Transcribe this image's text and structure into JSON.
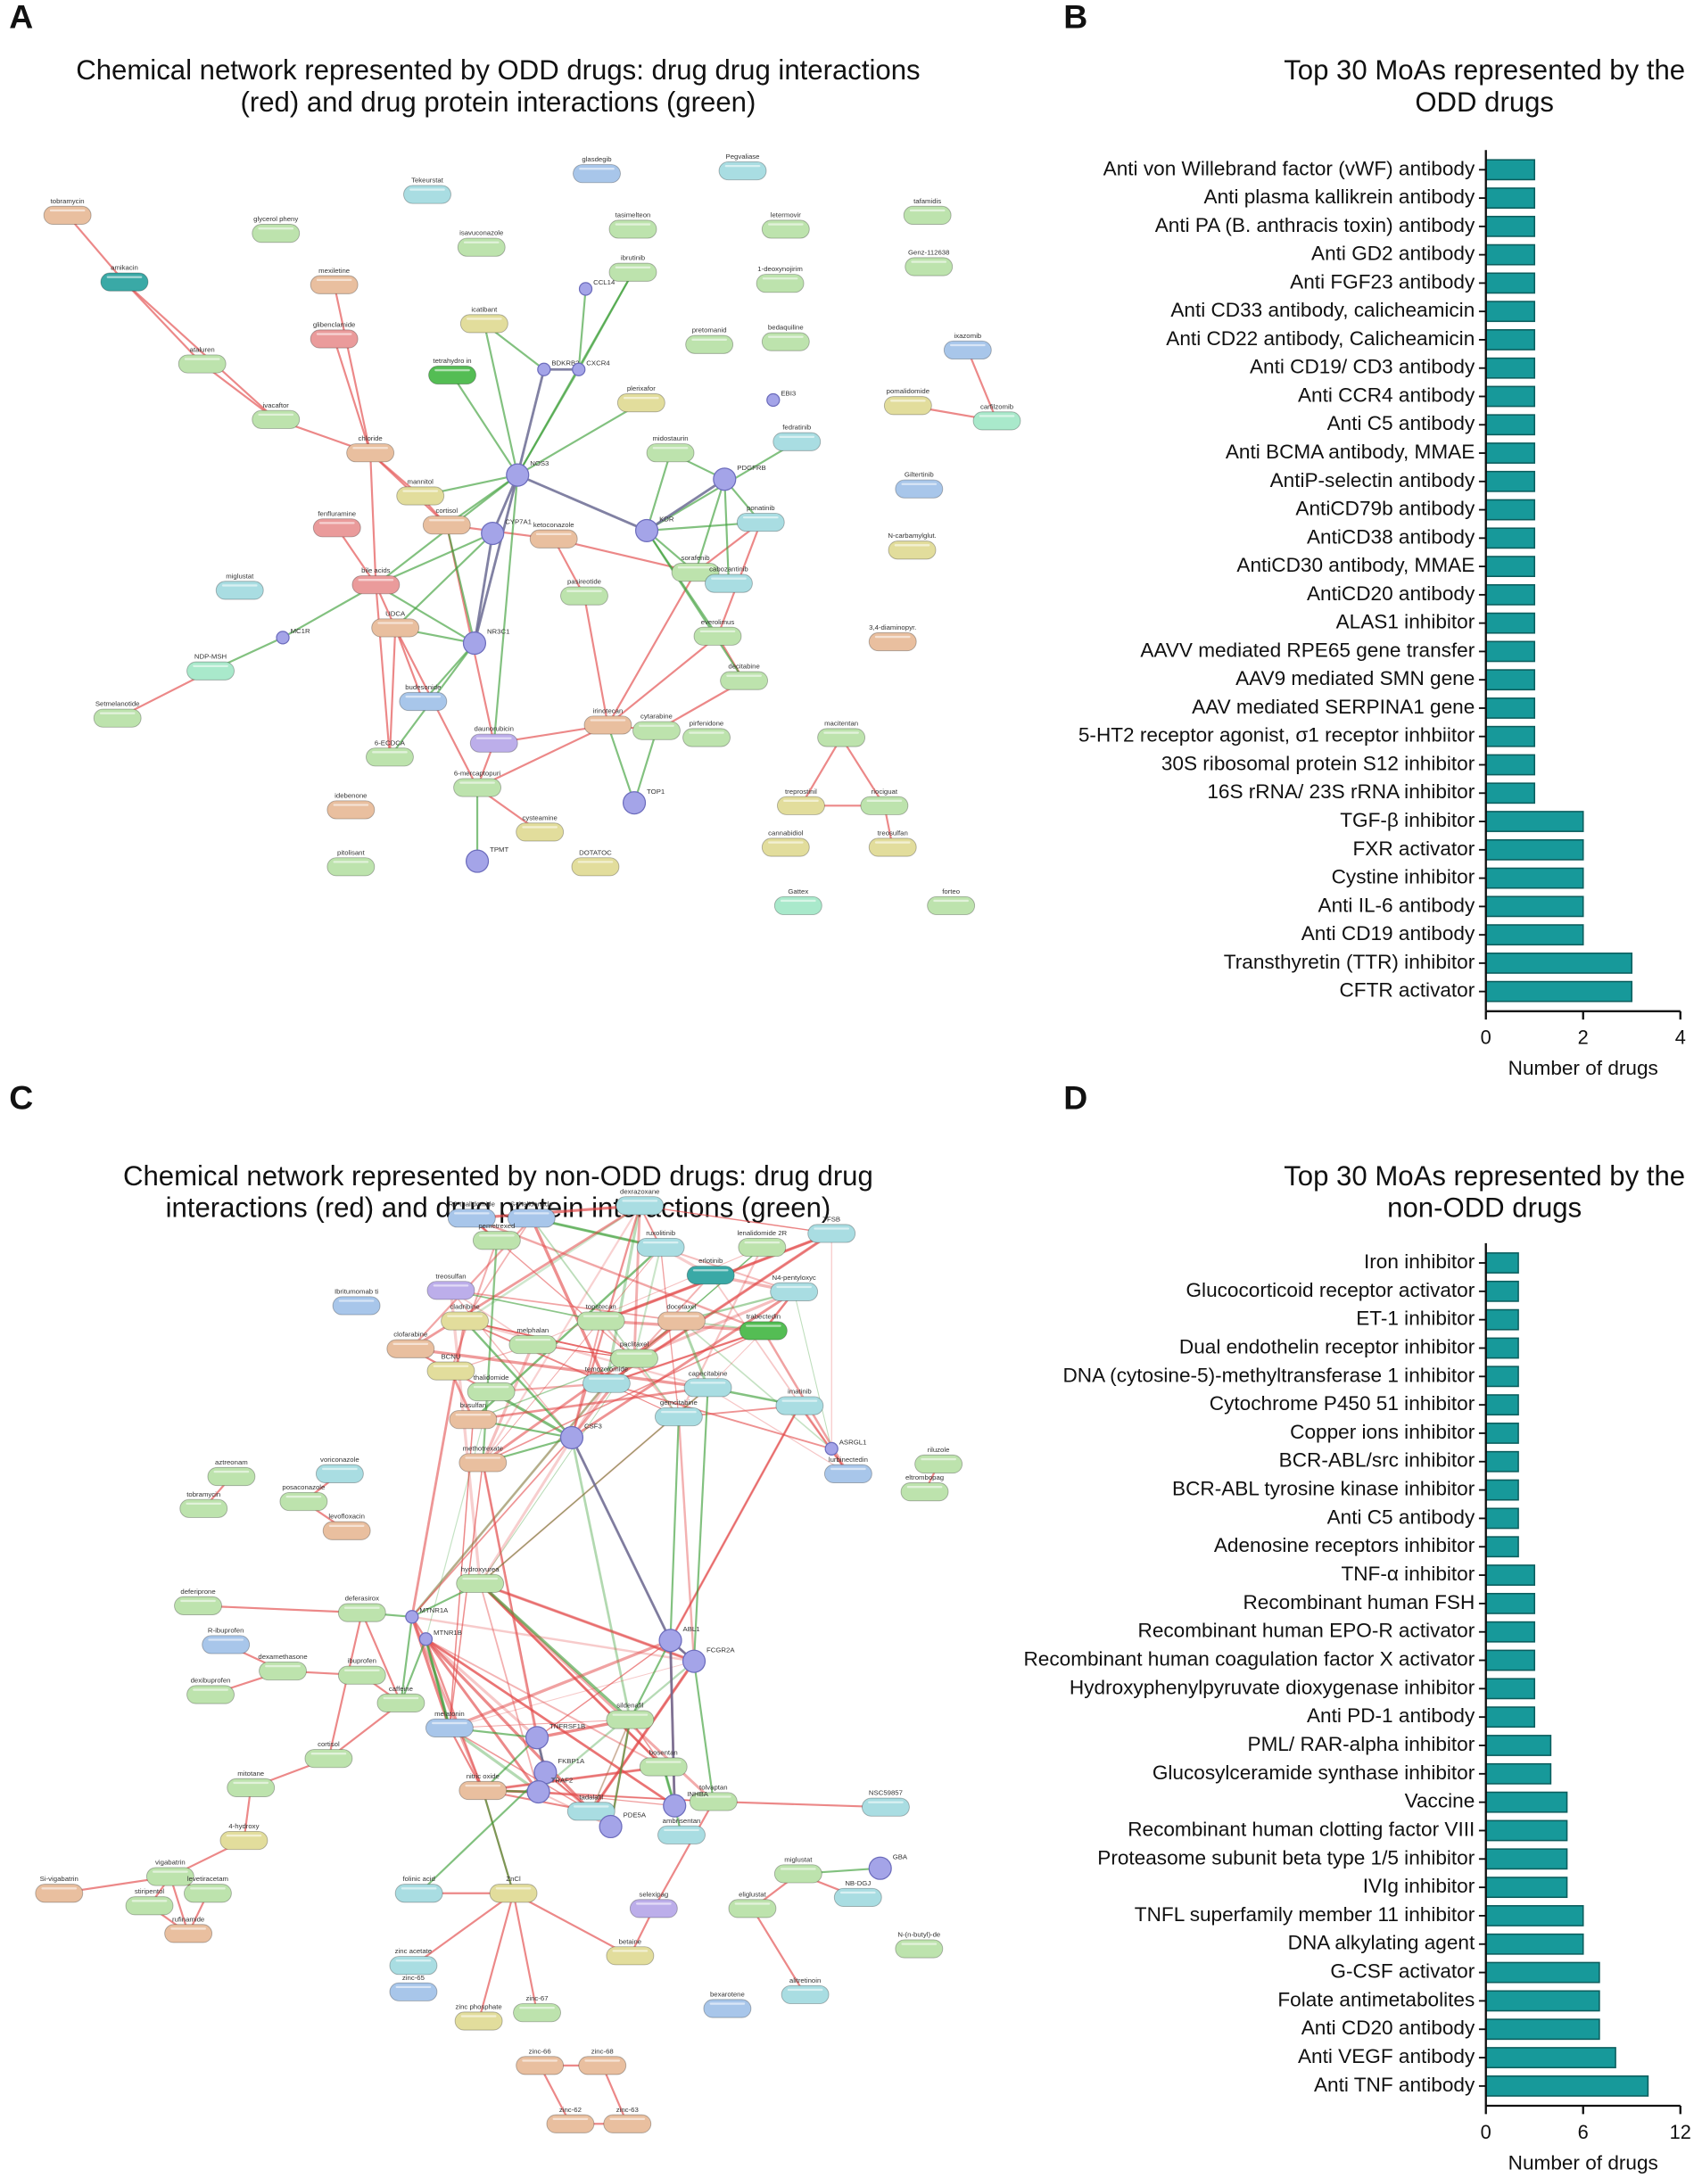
{
  "chart_data": [
    {
      "type": "network",
      "panel": "A",
      "title": [
        "Chemical network represented by ODD drugs: drug drug interactions",
        "(red) and drug protein interactions (green)"
      ],
      "nodes": [
        "tobramycin",
        "Tekeurstat",
        "glasdegib",
        "Pegvaliase",
        "tafamidis",
        "amikacin",
        "glycerol pheny",
        "tasimelteon",
        "letermovir",
        "isavuconazole",
        "ibrutinib",
        "1-deoxynojirim",
        "Genz-112638",
        "mexiletine",
        "CCL14",
        "glibenclamide",
        "icatibant",
        "BDKRB2",
        "CXCR4",
        "pretomanid",
        "bedaquiline",
        "ixazomib",
        "ataluren",
        "tetrahydro in",
        "EBI3",
        "plerixafor",
        "pomalidomide",
        "carfilzomib",
        "ivacaftor",
        "fedratinib",
        "chloride",
        "NOS3",
        "midostaurin",
        "PDGFRB",
        "Giltertinib",
        "fenfluramine",
        "mannitol",
        "cortisol",
        "CYP7A1",
        "ketoconazole",
        "KDR",
        "ponatinib",
        "N-carbamylglut.",
        "bile acids",
        "sorafenib",
        "miglustat",
        "cabozantinib",
        "pasireotide",
        "UDCA",
        "NR3C1",
        "MC1R",
        "everolimus",
        "3,4-diaminopyr.",
        "NDP-MSH",
        "decitabine",
        "budesonide",
        "Setmelanotide",
        "irinotecan",
        "cytarabine",
        "pirfenidone",
        "macitentan",
        "daunorubicin",
        "6-ECDCA",
        "6-mercaptopuri",
        "TOP1",
        "treprostinil",
        "riociguat",
        "cysteamine",
        "cannabidiol",
        "treosulfan",
        "idebenone",
        "pitolisant",
        "TPMT",
        "DOTATOC",
        "Gattex",
        "forteo"
      ]
    },
    {
      "type": "bar",
      "orientation": "horizontal",
      "panel": "B",
      "title": [
        "Top 30 MoAs represented by the",
        "ODD drugs"
      ],
      "categories": [
        "Anti von Willebrand factor (vWF) antibody",
        "Anti plasma kallikrein antibody",
        "Anti PA (B. anthracis toxin) antibody",
        "Anti GD2 antibody",
        "Anti FGF23 antibody",
        "Anti CD33 antibody, calicheamicin",
        "Anti CD22 antibody, Calicheamicin",
        "Anti CD19/ CD3 antibody",
        "Anti CCR4 antibody",
        "Anti C5 antibody",
        "Anti BCMA antibody, MMAE",
        "AntiP-selectin antibody",
        "AntiCD79b antibody",
        "AntiCD38 antibody",
        "AntiCD30 antibody, MMAE",
        "AntiCD20 antibody",
        "ALAS1 inhibitor",
        "AAVV mediated RPE65 gene transfer",
        "AAV9 mediated SMN gene",
        "AAV mediated SERPINA1 gene",
        "5-HT2 receptor agonist, σ1 receptor inhbiitor",
        "30S ribosomal protein S12 inhibitor",
        "16S rRNA/ 23S rRNA inhibitor",
        "TGF-β inhibitor",
        "FXR activator",
        "Cystine inhibitor",
        "Anti IL-6 antibody",
        "Anti CD19 antibody",
        "Transthyretin (TTR) inhibitor",
        "CFTR activator"
      ],
      "values": [
        1,
        1,
        1,
        1,
        1,
        1,
        1,
        1,
        1,
        1,
        1,
        1,
        1,
        1,
        1,
        1,
        1,
        1,
        1,
        1,
        1,
        1,
        1,
        2,
        2,
        2,
        2,
        2,
        3,
        3
      ],
      "color": "#17999a",
      "xlim": [
        0,
        4
      ],
      "xticks": [
        0,
        2,
        4
      ],
      "xlabel": "Number of drugs"
    },
    {
      "type": "network",
      "panel": "C",
      "title": [
        "Chemical network represented by non-ODD drugs: drug drug",
        "interactions (red) and drug protein interactions (green)"
      ],
      "nodes": [
        "dexrazoxane",
        "R3-thalidomide",
        "S-thalidomide",
        "TFSB",
        "pemetrexed",
        "ruxolitinib",
        "lenalidomide 2R",
        "erlotinib",
        "N4-pentyloxyc",
        "treosulfan",
        "Ibritumomab ti",
        "cladribine",
        "topotecan",
        "docetaxel",
        "trabectedin",
        "melphalan",
        "clofarabine",
        "BCNU",
        "paclitaxel",
        "temozolomide",
        "capecitabine",
        "thalidomide",
        "busulfan",
        "gemcitabine",
        "voriconazole",
        "aztreonam",
        "posaconazole",
        "tobramycin",
        "levofloxacin",
        "methotrexate",
        "imatinib",
        "lurbinectedin",
        "riluzole",
        "eltrombopag",
        "CSF3",
        "hydroxyurea",
        "deferiprone",
        "deferasirox",
        "MTNR1A",
        "MTNR1B",
        "R-ibuprofen",
        "dexamethasone",
        "ibuprofen",
        "dexibuprofen",
        "caffeine",
        "melatonin",
        "ABL1",
        "FCGR2A",
        "sildenafil",
        "cortisol",
        "TNFRSF1B",
        "bosentan",
        "FKBP1A",
        "mitotane",
        "nitric oxide",
        "TRAF2",
        "tolvaptan",
        "NSC59857",
        "INHBA",
        "tadalafil",
        "PDE5A",
        "ambrisentan",
        "4-hydroxy",
        "GBA",
        "miglustat",
        "vigabatrin",
        "Si-vigabatrin",
        "levetiracetam",
        "folinic acid",
        "ZnCl",
        "NB-DGJ",
        "stiripentol",
        "selexipag",
        "eliglustat",
        "rufinamide",
        "N-(n-butyl)-de",
        "betaine",
        "zinc acetate",
        "zinc-65",
        "alitretinoin",
        "bexarotene",
        "zinc-67",
        "zinc phosphate",
        "zinc-66",
        "zinc-68",
        "zinc-62",
        "zinc-63",
        "ASRGL1"
      ]
    },
    {
      "type": "bar",
      "orientation": "horizontal",
      "panel": "D",
      "title": [
        "Top 30 MoAs represented by the",
        "non-ODD drugs"
      ],
      "categories": [
        "Iron inhibitor",
        "Glucocorticoid receptor activator",
        "ET-1 inhibitor",
        "Dual endothelin receptor inhibitor",
        "DNA (cytosine-5)-methyltransferase 1 inhibitor",
        "Cytochrome P450 51 inhibitor",
        "Copper ions inhibitor",
        "BCR-ABL/src inhibitor",
        "BCR-ABL tyrosine kinase inhibitor",
        "Anti C5 antibody",
        "Adenosine receptors inhibitor",
        "TNF-α inhibitor",
        "Recombinant human FSH",
        "Recombinant human EPO-R activator",
        "Recombinant human coagulation factor X activator",
        "Hydroxyphenylpyruvate dioxygenase inhibitor",
        "Anti PD-1 antibody",
        "PML/ RAR-alpha inhibitor",
        "Glucosylceramide synthase inhibitor",
        "Vaccine",
        "Recombinant human clotting factor VIII",
        "Proteasome subunit beta type 1/5 inhibitor",
        "IVIg inhibitor",
        "TNFL superfamily member 11 inhibitor",
        "DNA alkylating agent",
        "G-CSF activator",
        "Folate antimetabolites",
        "Anti CD20 antibody",
        "Anti VEGF antibody",
        "Anti TNF antibody"
      ],
      "values": [
        2,
        2,
        2,
        2,
        2,
        2,
        2,
        2,
        2,
        2,
        2,
        3,
        3,
        3,
        3,
        3,
        3,
        4,
        4,
        5,
        5,
        5,
        5,
        6,
        6,
        7,
        7,
        7,
        8,
        10
      ],
      "color": "#17999a",
      "xlim": [
        0,
        12
      ],
      "xticks": [
        0,
        6,
        12
      ],
      "xlabel": "Number of drugs"
    }
  ]
}
